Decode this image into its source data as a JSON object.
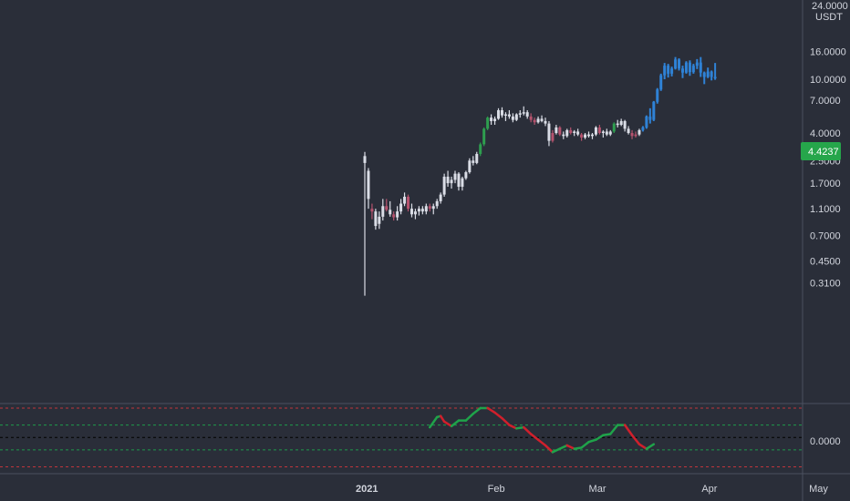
{
  "colors": {
    "background": "#2a2e39",
    "grid_border": "#4b5060",
    "text": "#d1d4dc",
    "candle_neutral": "#dadde6",
    "candle_up": "#2e9e4f",
    "candle_down": "#b5536e",
    "candle_blue": "#2f82d6",
    "last_price_badge": "#26a64b",
    "osc_up": "#1fa34a",
    "osc_down": "#d0202c",
    "osc_red_line": "#c0353c",
    "osc_green_line": "#1e9b4b",
    "osc_zero_line": "#000000"
  },
  "price_axis": {
    "currency_top": "24.0000",
    "currency": "USDT",
    "ticks": [
      "16.0000",
      "10.0000",
      "7.0000",
      "4.0000",
      "2.5000",
      "1.7000",
      "1.1000",
      "0.7000",
      "0.4500",
      "0.3100"
    ],
    "tick_values": [
      16,
      10,
      7,
      4,
      2.5,
      1.7,
      1.1,
      0.7,
      0.45,
      0.31
    ],
    "scale": "log",
    "last_price": "4.4237",
    "last_price_value": 4.4237
  },
  "osc_axis": {
    "ticks": [
      "0.0000"
    ]
  },
  "time_axis": {
    "ticks": [
      "2021",
      "Feb",
      "Mar",
      "Apr",
      "May"
    ]
  },
  "chart_data": {
    "type": "candlestick",
    "title": "",
    "x_unit": "days since listing (listing = 2020-12-29)",
    "y_scale": "log",
    "y_range": [
      0.25,
      24
    ],
    "x_axis_labels": [
      "2021",
      "Feb",
      "Mar",
      "Apr",
      "May"
    ],
    "y_axis_ticks": [
      16,
      10,
      7,
      4,
      2.5,
      1.7,
      1.1,
      0.7,
      0.45,
      0.31
    ],
    "last_price": 4.4237,
    "candles": [
      {
        "d": 0,
        "o": 2.7,
        "h": 2.9,
        "l": 0.25,
        "c": 2.4,
        "s": "n"
      },
      {
        "d": 1,
        "o": 2.1,
        "h": 2.2,
        "l": 1.1,
        "c": 1.3,
        "s": "n"
      },
      {
        "d": 2,
        "o": 1.1,
        "h": 1.2,
        "l": 0.92,
        "c": 1.05,
        "s": "d"
      },
      {
        "d": 3,
        "o": 1.05,
        "h": 1.1,
        "l": 0.77,
        "c": 0.82,
        "s": "n"
      },
      {
        "d": 4,
        "o": 0.85,
        "h": 1.05,
        "l": 0.78,
        "c": 0.96,
        "s": "n"
      },
      {
        "d": 5,
        "o": 0.96,
        "h": 1.3,
        "l": 0.9,
        "c": 1.15,
        "s": "n"
      },
      {
        "d": 6,
        "o": 1.15,
        "h": 1.3,
        "l": 1.05,
        "c": 1.08,
        "s": "d"
      },
      {
        "d": 7,
        "o": 1.08,
        "h": 1.25,
        "l": 0.96,
        "c": 1.0,
        "s": "n"
      },
      {
        "d": 8,
        "o": 1.0,
        "h": 1.05,
        "l": 0.9,
        "c": 0.95,
        "s": "d"
      },
      {
        "d": 9,
        "o": 0.95,
        "h": 1.15,
        "l": 0.9,
        "c": 1.05,
        "s": "n"
      },
      {
        "d": 10,
        "o": 1.05,
        "h": 1.3,
        "l": 1.0,
        "c": 1.2,
        "s": "n"
      },
      {
        "d": 11,
        "o": 1.2,
        "h": 1.45,
        "l": 1.15,
        "c": 1.35,
        "s": "n"
      },
      {
        "d": 12,
        "o": 1.35,
        "h": 1.4,
        "l": 1.05,
        "c": 1.1,
        "s": "d"
      },
      {
        "d": 13,
        "o": 1.1,
        "h": 1.2,
        "l": 0.95,
        "c": 1.0,
        "s": "n"
      },
      {
        "d": 14,
        "o": 1.0,
        "h": 1.1,
        "l": 0.92,
        "c": 1.05,
        "s": "n"
      },
      {
        "d": 15,
        "o": 1.05,
        "h": 1.15,
        "l": 0.98,
        "c": 1.1,
        "s": "n"
      },
      {
        "d": 16,
        "o": 1.1,
        "h": 1.15,
        "l": 1.0,
        "c": 1.05,
        "s": "n"
      },
      {
        "d": 17,
        "o": 1.05,
        "h": 1.2,
        "l": 1.0,
        "c": 1.15,
        "s": "n"
      },
      {
        "d": 18,
        "o": 1.15,
        "h": 1.2,
        "l": 1.05,
        "c": 1.1,
        "s": "d"
      },
      {
        "d": 19,
        "o": 1.1,
        "h": 1.2,
        "l": 1.0,
        "c": 1.15,
        "s": "n"
      },
      {
        "d": 20,
        "o": 1.15,
        "h": 1.3,
        "l": 1.1,
        "c": 1.25,
        "s": "n"
      },
      {
        "d": 21,
        "o": 1.25,
        "h": 1.45,
        "l": 1.2,
        "c": 1.4,
        "s": "n"
      },
      {
        "d": 22,
        "o": 1.4,
        "h": 2.0,
        "l": 1.35,
        "c": 1.9,
        "s": "n"
      },
      {
        "d": 23,
        "o": 1.9,
        "h": 2.1,
        "l": 1.6,
        "c": 1.7,
        "s": "n"
      },
      {
        "d": 24,
        "o": 1.7,
        "h": 1.9,
        "l": 1.55,
        "c": 1.8,
        "s": "n"
      },
      {
        "d": 25,
        "o": 1.8,
        "h": 2.1,
        "l": 1.7,
        "c": 2.0,
        "s": "n"
      },
      {
        "d": 26,
        "o": 2.0,
        "h": 2.05,
        "l": 1.5,
        "c": 1.6,
        "s": "n"
      },
      {
        "d": 27,
        "o": 1.6,
        "h": 1.9,
        "l": 1.5,
        "c": 1.85,
        "s": "n"
      },
      {
        "d": 28,
        "o": 1.85,
        "h": 2.1,
        "l": 1.8,
        "c": 2.05,
        "s": "n"
      },
      {
        "d": 29,
        "o": 2.05,
        "h": 2.6,
        "l": 2.0,
        "c": 2.5,
        "s": "n"
      },
      {
        "d": 30,
        "o": 2.5,
        "h": 2.7,
        "l": 2.3,
        "c": 2.4,
        "s": "n"
      },
      {
        "d": 31,
        "o": 2.4,
        "h": 2.9,
        "l": 2.35,
        "c": 2.8,
        "s": "n"
      },
      {
        "d": 32,
        "o": 2.8,
        "h": 3.4,
        "l": 2.7,
        "c": 3.3,
        "s": "u"
      },
      {
        "d": 33,
        "o": 3.3,
        "h": 4.4,
        "l": 3.2,
        "c": 4.3,
        "s": "u"
      },
      {
        "d": 34,
        "o": 4.3,
        "h": 5.3,
        "l": 4.2,
        "c": 5.2,
        "s": "u"
      },
      {
        "d": 35,
        "o": 5.2,
        "h": 5.5,
        "l": 4.6,
        "c": 4.9,
        "s": "n"
      },
      {
        "d": 36,
        "o": 4.9,
        "h": 5.3,
        "l": 4.6,
        "c": 5.1,
        "s": "n"
      },
      {
        "d": 37,
        "o": 5.1,
        "h": 6.1,
        "l": 5.0,
        "c": 5.9,
        "s": "n"
      },
      {
        "d": 38,
        "o": 5.9,
        "h": 6.2,
        "l": 5.2,
        "c": 5.4,
        "s": "n"
      },
      {
        "d": 39,
        "o": 5.4,
        "h": 5.7,
        "l": 4.9,
        "c": 5.5,
        "s": "n"
      },
      {
        "d": 40,
        "o": 5.5,
        "h": 5.9,
        "l": 5.1,
        "c": 5.3,
        "s": "n"
      },
      {
        "d": 41,
        "o": 5.3,
        "h": 5.6,
        "l": 4.8,
        "c": 5.0,
        "s": "n"
      },
      {
        "d": 42,
        "o": 5.0,
        "h": 5.6,
        "l": 4.9,
        "c": 5.5,
        "s": "n"
      },
      {
        "d": 43,
        "o": 5.5,
        "h": 5.9,
        "l": 5.2,
        "c": 5.6,
        "s": "n"
      },
      {
        "d": 44,
        "o": 5.6,
        "h": 6.3,
        "l": 5.4,
        "c": 5.7,
        "s": "n"
      },
      {
        "d": 45,
        "o": 5.7,
        "h": 5.9,
        "l": 5.1,
        "c": 5.3,
        "s": "n"
      },
      {
        "d": 46,
        "o": 5.3,
        "h": 5.6,
        "l": 4.8,
        "c": 5.0,
        "s": "d"
      },
      {
        "d": 47,
        "o": 5.0,
        "h": 5.2,
        "l": 4.6,
        "c": 4.8,
        "s": "d"
      },
      {
        "d": 48,
        "o": 4.8,
        "h": 5.3,
        "l": 4.7,
        "c": 5.1,
        "s": "n"
      },
      {
        "d": 49,
        "o": 5.1,
        "h": 5.4,
        "l": 4.8,
        "c": 4.9,
        "s": "n"
      },
      {
        "d": 50,
        "o": 4.9,
        "h": 5.2,
        "l": 4.5,
        "c": 4.7,
        "s": "n"
      },
      {
        "d": 51,
        "o": 4.7,
        "h": 4.9,
        "l": 3.2,
        "c": 3.5,
        "s": "n"
      },
      {
        "d": 52,
        "o": 3.5,
        "h": 4.2,
        "l": 3.4,
        "c": 4.0,
        "s": "d"
      },
      {
        "d": 53,
        "o": 4.0,
        "h": 4.6,
        "l": 3.9,
        "c": 4.4,
        "s": "n"
      },
      {
        "d": 54,
        "o": 4.4,
        "h": 4.5,
        "l": 3.8,
        "c": 3.9,
        "s": "d"
      },
      {
        "d": 55,
        "o": 3.9,
        "h": 4.1,
        "l": 3.6,
        "c": 3.8,
        "s": "n"
      },
      {
        "d": 56,
        "o": 3.8,
        "h": 4.3,
        "l": 3.7,
        "c": 4.2,
        "s": "n"
      },
      {
        "d": 57,
        "o": 4.2,
        "h": 4.4,
        "l": 3.9,
        "c": 4.0,
        "s": "d"
      },
      {
        "d": 58,
        "o": 4.0,
        "h": 4.2,
        "l": 3.8,
        "c": 4.1,
        "s": "n"
      },
      {
        "d": 59,
        "o": 4.1,
        "h": 4.3,
        "l": 3.8,
        "c": 3.9,
        "s": "n"
      },
      {
        "d": 60,
        "o": 3.9,
        "h": 4.0,
        "l": 3.5,
        "c": 3.7,
        "s": "d"
      },
      {
        "d": 61,
        "o": 3.7,
        "h": 4.0,
        "l": 3.6,
        "c": 3.9,
        "s": "n"
      },
      {
        "d": 62,
        "o": 3.9,
        "h": 4.1,
        "l": 3.7,
        "c": 3.8,
        "s": "n"
      },
      {
        "d": 63,
        "o": 3.8,
        "h": 4.0,
        "l": 3.6,
        "c": 3.9,
        "s": "n"
      },
      {
        "d": 64,
        "o": 3.9,
        "h": 4.5,
        "l": 3.8,
        "c": 4.4,
        "s": "n"
      },
      {
        "d": 65,
        "o": 4.4,
        "h": 4.6,
        "l": 3.9,
        "c": 4.0,
        "s": "d"
      },
      {
        "d": 66,
        "o": 4.0,
        "h": 4.2,
        "l": 3.7,
        "c": 4.1,
        "s": "n"
      },
      {
        "d": 67,
        "o": 4.1,
        "h": 4.3,
        "l": 3.8,
        "c": 3.9,
        "s": "n"
      },
      {
        "d": 68,
        "o": 3.9,
        "h": 4.2,
        "l": 3.8,
        "c": 4.1,
        "s": "n"
      },
      {
        "d": 69,
        "o": 4.1,
        "h": 4.8,
        "l": 4.0,
        "c": 4.7,
        "s": "u"
      },
      {
        "d": 70,
        "o": 4.7,
        "h": 5.0,
        "l": 4.4,
        "c": 4.6,
        "s": "n"
      },
      {
        "d": 71,
        "o": 4.6,
        "h": 5.1,
        "l": 4.5,
        "c": 4.9,
        "s": "n"
      },
      {
        "d": 72,
        "o": 4.9,
        "h": 5.0,
        "l": 4.1,
        "c": 4.3,
        "s": "n"
      },
      {
        "d": 73,
        "o": 4.3,
        "h": 4.5,
        "l": 3.9,
        "c": 4.0,
        "s": "n"
      },
      {
        "d": 74,
        "o": 4.0,
        "h": 4.2,
        "l": 3.6,
        "c": 3.8,
        "s": "d"
      },
      {
        "d": 75,
        "o": 3.8,
        "h": 4.1,
        "l": 3.7,
        "c": 3.9,
        "s": "d"
      },
      {
        "d": 76,
        "o": 3.9,
        "h": 4.3,
        "l": 3.8,
        "c": 4.2,
        "s": "n"
      },
      {
        "d": 77,
        "o": 4.2,
        "h": 4.5,
        "l": 4.1,
        "c": 4.4,
        "s": "b"
      },
      {
        "d": 78,
        "o": 4.4,
        "h": 5.4,
        "l": 4.3,
        "c": 5.3,
        "s": "b"
      },
      {
        "d": 79,
        "o": 5.3,
        "h": 6.1,
        "l": 4.7,
        "c": 5.0,
        "s": "b"
      },
      {
        "d": 80,
        "o": 5.0,
        "h": 6.9,
        "l": 4.9,
        "c": 6.8,
        "s": "b"
      },
      {
        "d": 81,
        "o": 6.8,
        "h": 8.6,
        "l": 6.6,
        "c": 8.4,
        "s": "b"
      },
      {
        "d": 82,
        "o": 8.4,
        "h": 11.0,
        "l": 8.2,
        "c": 10.7,
        "s": "b"
      },
      {
        "d": 83,
        "o": 10.7,
        "h": 13.2,
        "l": 10.0,
        "c": 12.6,
        "s": "b"
      },
      {
        "d": 84,
        "o": 12.6,
        "h": 13.0,
        "l": 10.3,
        "c": 11.0,
        "s": "b"
      },
      {
        "d": 85,
        "o": 11.0,
        "h": 12.4,
        "l": 10.5,
        "c": 12.0,
        "s": "b"
      },
      {
        "d": 86,
        "o": 12.0,
        "h": 14.6,
        "l": 11.8,
        "c": 14.0,
        "s": "b"
      },
      {
        "d": 87,
        "o": 14.0,
        "h": 14.3,
        "l": 11.6,
        "c": 12.0,
        "s": "b"
      },
      {
        "d": 88,
        "o": 12.0,
        "h": 12.6,
        "l": 10.2,
        "c": 11.2,
        "s": "b"
      },
      {
        "d": 89,
        "o": 11.2,
        "h": 13.6,
        "l": 11.0,
        "c": 13.3,
        "s": "b"
      },
      {
        "d": 90,
        "o": 13.3,
        "h": 13.8,
        "l": 10.6,
        "c": 11.3,
        "s": "b"
      },
      {
        "d": 91,
        "o": 11.3,
        "h": 13.0,
        "l": 11.0,
        "c": 12.6,
        "s": "b"
      },
      {
        "d": 92,
        "o": 12.6,
        "h": 14.1,
        "l": 11.9,
        "c": 13.3,
        "s": "b"
      },
      {
        "d": 93,
        "o": 13.3,
        "h": 14.6,
        "l": 10.4,
        "c": 11.2,
        "s": "b"
      },
      {
        "d": 94,
        "o": 11.2,
        "h": 11.4,
        "l": 9.2,
        "c": 10.4,
        "s": "b"
      },
      {
        "d": 95,
        "o": 10.4,
        "h": 12.2,
        "l": 10.2,
        "c": 11.4,
        "s": "b"
      },
      {
        "d": 96,
        "o": 11.4,
        "h": 11.6,
        "l": 9.8,
        "c": 10.4,
        "s": "b"
      },
      {
        "d": 97,
        "o": 10.4,
        "h": 13.2,
        "l": 9.9,
        "c": 10.2,
        "s": "b"
      }
    ],
    "oscillator": {
      "y_range": [
        -1.6,
        1.5
      ],
      "zero": 0,
      "levels": [
        {
          "v": 1.3,
          "color": "red"
        },
        {
          "v": 0.55,
          "color": "green"
        },
        {
          "v": 0,
          "color": "black"
        },
        {
          "v": -0.55,
          "color": "green"
        },
        {
          "v": -1.3,
          "color": "red"
        }
      ],
      "values": [
        {
          "d": 18,
          "v": 0.45
        },
        {
          "d": 20,
          "v": 0.9
        },
        {
          "d": 21,
          "v": 0.95
        },
        {
          "d": 22,
          "v": 0.7
        },
        {
          "d": 24,
          "v": 0.5
        },
        {
          "d": 26,
          "v": 0.75
        },
        {
          "d": 28,
          "v": 0.75
        },
        {
          "d": 30,
          "v": 1.05
        },
        {
          "d": 32,
          "v": 1.3
        },
        {
          "d": 34,
          "v": 1.3
        },
        {
          "d": 36,
          "v": 1.1
        },
        {
          "d": 38,
          "v": 0.85
        },
        {
          "d": 40,
          "v": 0.55
        },
        {
          "d": 42,
          "v": 0.4
        },
        {
          "d": 44,
          "v": 0.45
        },
        {
          "d": 46,
          "v": 0.15
        },
        {
          "d": 48,
          "v": -0.1
        },
        {
          "d": 50,
          "v": -0.35
        },
        {
          "d": 52,
          "v": -0.65
        },
        {
          "d": 54,
          "v": -0.5
        },
        {
          "d": 56,
          "v": -0.35
        },
        {
          "d": 58,
          "v": -0.5
        },
        {
          "d": 60,
          "v": -0.45
        },
        {
          "d": 62,
          "v": -0.2
        },
        {
          "d": 64,
          "v": -0.1
        },
        {
          "d": 66,
          "v": 0.1
        },
        {
          "d": 68,
          "v": 0.15
        },
        {
          "d": 70,
          "v": 0.55
        },
        {
          "d": 72,
          "v": 0.55
        },
        {
          "d": 74,
          "v": 0.1
        },
        {
          "d": 76,
          "v": -0.3
        },
        {
          "d": 78,
          "v": -0.5
        },
        {
          "d": 80,
          "v": -0.3
        }
      ]
    }
  }
}
